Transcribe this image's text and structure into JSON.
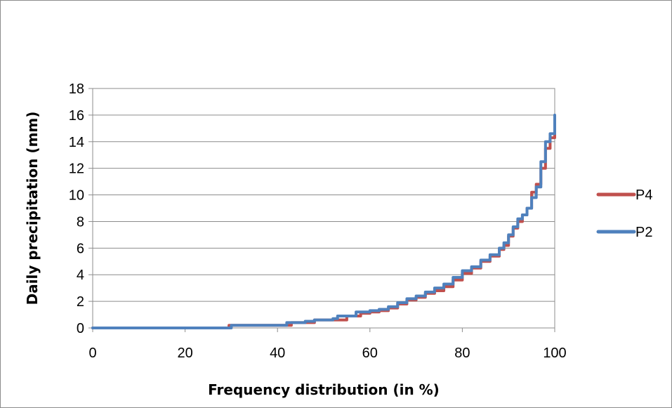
{
  "chart_data": {
    "type": "line",
    "title": "",
    "xlabel": "Frequency distribution  (in %)",
    "ylabel": "Daily precipitation (mm)",
    "xlim": [
      0,
      100
    ],
    "ylim": [
      0,
      18
    ],
    "xticks": [
      "0",
      "20",
      "40",
      "60",
      "80",
      "100"
    ],
    "yticks": [
      "0",
      "2",
      "4",
      "6",
      "8",
      "10",
      "12",
      "14",
      "16",
      "18"
    ],
    "grid": "horizontal",
    "legend_position": "right",
    "series": [
      {
        "name": "P4",
        "color": "#c0504d",
        "x": [
          0,
          28,
          29,
          29.5,
          42,
          43,
          47,
          48,
          54,
          55,
          58,
          60,
          62,
          64,
          66,
          68,
          70,
          72,
          74,
          76,
          78,
          80,
          82,
          84,
          86,
          88,
          89,
          90,
          91,
          92,
          93,
          94,
          95,
          96,
          97,
          98,
          99,
          100
        ],
        "y": [
          0,
          0,
          0,
          0.2,
          0.2,
          0.4,
          0.4,
          0.6,
          0.6,
          0.9,
          1.1,
          1.2,
          1.3,
          1.5,
          1.8,
          2.1,
          2.3,
          2.6,
          2.8,
          3.1,
          3.6,
          4.1,
          4.5,
          5.0,
          5.4,
          5.9,
          6.2,
          6.9,
          7.5,
          8.0,
          8.5,
          9.0,
          10.2,
          10.8,
          12.0,
          13.5,
          14.3,
          15.0
        ]
      },
      {
        "name": "P2",
        "color": "#4f81bd",
        "x": [
          0,
          28,
          29,
          30,
          41,
          42,
          46,
          48,
          52,
          53,
          57,
          60,
          62,
          64,
          66,
          68,
          70,
          72,
          74,
          76,
          78,
          80,
          82,
          84,
          86,
          88,
          89,
          90,
          91,
          92,
          93,
          94,
          95,
          96,
          97,
          98,
          99,
          100
        ],
        "y": [
          0,
          0,
          0,
          0.2,
          0.2,
          0.4,
          0.5,
          0.6,
          0.7,
          0.9,
          1.2,
          1.3,
          1.4,
          1.6,
          1.9,
          2.2,
          2.4,
          2.7,
          3.0,
          3.3,
          3.8,
          4.3,
          4.6,
          5.1,
          5.5,
          6.0,
          6.4,
          7.0,
          7.6,
          8.2,
          8.5,
          9.0,
          9.8,
          10.6,
          12.5,
          14.0,
          14.6,
          16.0
        ]
      }
    ]
  }
}
